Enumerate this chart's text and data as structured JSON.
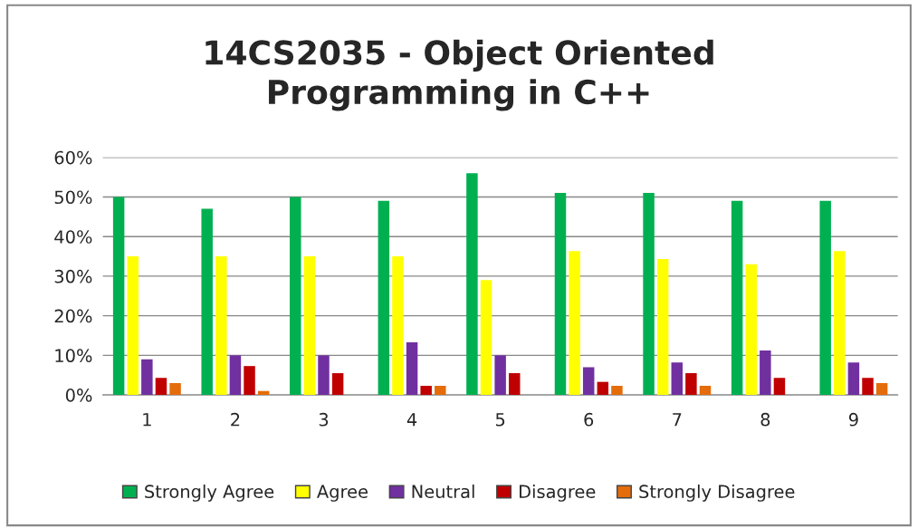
{
  "chart_data": {
    "type": "bar",
    "title": "14CS2035 - Object Oriented\nProgramming in C++",
    "categories": [
      "1",
      "2",
      "3",
      "4",
      "5",
      "6",
      "7",
      "8",
      "9"
    ],
    "series": [
      {
        "name": "Strongly Agree",
        "color": "#00b050",
        "values": [
          50,
          47,
          50,
          49,
          56,
          51,
          51,
          49,
          49
        ]
      },
      {
        "name": "Agree",
        "color": "#ffff00",
        "values": [
          35,
          35,
          35,
          35,
          29,
          36.3,
          34.3,
          33,
          36.3
        ]
      },
      {
        "name": "Neutral",
        "color": "#7030a0",
        "values": [
          9,
          10,
          10,
          13.3,
          10,
          7,
          8.2,
          11.2,
          8.2
        ]
      },
      {
        "name": "Disagree",
        "color": "#c00000",
        "values": [
          4.3,
          7.3,
          5.5,
          2.3,
          5.5,
          3.3,
          5.5,
          4.3,
          4.3
        ]
      },
      {
        "name": "Strongly Disagree",
        "color": "#e46c0a",
        "values": [
          3,
          1,
          0,
          2.3,
          0,
          2.3,
          2.3,
          0,
          3
        ]
      }
    ],
    "ylim": [
      0,
      60
    ],
    "yticks": [
      {
        "value": 0,
        "label": "0%"
      },
      {
        "value": 10,
        "label": "10%"
      },
      {
        "value": 20,
        "label": "20%"
      },
      {
        "value": 30,
        "label": "30%"
      },
      {
        "value": 40,
        "label": "40%"
      },
      {
        "value": 50,
        "label": "50%"
      },
      {
        "value": 60,
        "label": "60%"
      }
    ],
    "grid": "y",
    "legend": "bottom"
  }
}
